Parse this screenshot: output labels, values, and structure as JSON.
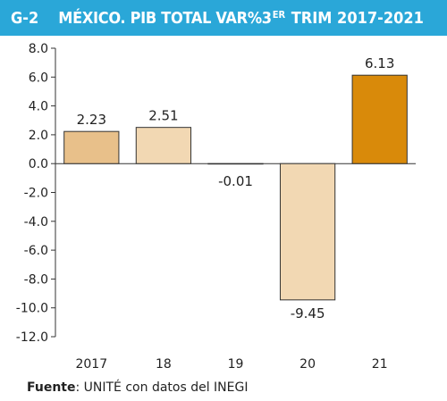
{
  "header": {
    "code": "G-2",
    "title_main": "MÉXICO. PIB TOTAL VAR%3",
    "title_sup": "ER",
    "title_rest": " TRIM 2017-2021",
    "background_color": "#2aa7d8"
  },
  "chart_data": {
    "type": "bar",
    "categories": [
      "2017",
      "18",
      "19",
      "20",
      "21"
    ],
    "values": [
      2.23,
      2.51,
      -0.01,
      -9.45,
      6.13
    ],
    "data_labels": [
      "2.23",
      "2.51",
      "-0.01",
      "-9.45",
      "6.13"
    ],
    "ylim": [
      -12.0,
      8.0
    ],
    "yticks": [
      8.0,
      6.0,
      4.0,
      2.0,
      0.0,
      -2.0,
      -4.0,
      -6.0,
      -8.0,
      -10.0,
      -12.0
    ],
    "ytick_labels": [
      "8.0",
      "6.0",
      "4.0",
      "2.0",
      "0.0",
      "-2.0",
      "-4.0",
      "-6.0",
      "-8.0",
      "-10.0",
      "-12.0"
    ],
    "grid": false,
    "bar_colors": [
      "#e8c08a",
      "#f2d8b3",
      "#f2d8b3",
      "#f2d8b3",
      "#d98a0a"
    ],
    "bar_stroke": "#333333",
    "title": "",
    "xlabel": "",
    "ylabel": ""
  },
  "source": {
    "label": "Fuente",
    "separator": ": ",
    "text": "UNITÉ con datos del INEGI"
  }
}
